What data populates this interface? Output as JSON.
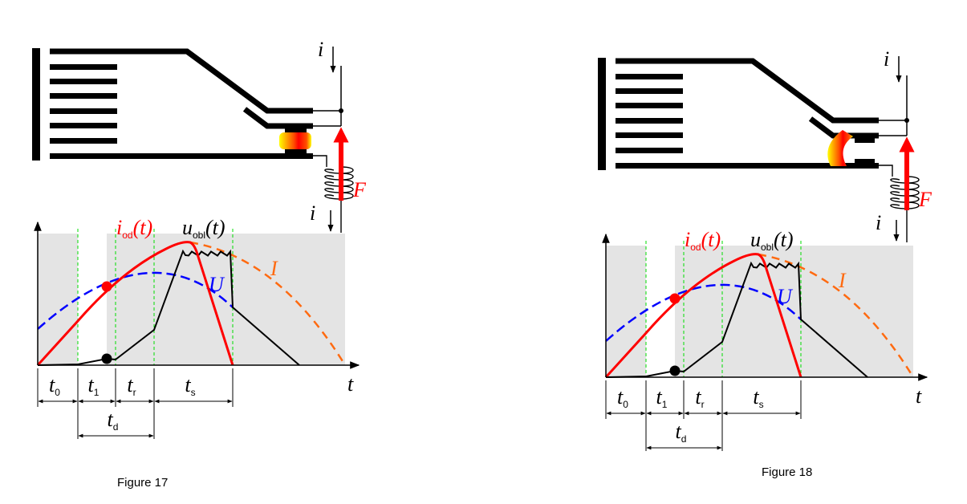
{
  "colors": {
    "current_red": "#ff0000",
    "prospective_current_orange": "#ff6a10",
    "voltage_blue": "#0000ff",
    "arc_voltage_black": "#000000",
    "interval_guides_green": "#00dd00",
    "plot_background_gray": "#e4e4e4"
  },
  "figures": [
    {
      "caption": "Figure 17",
      "contact_state": "arc between closed contacts",
      "labels": {
        "current_in": "i",
        "current_out": "i",
        "force": "F",
        "iod_main": "i",
        "iod_sub": "od",
        "iod_tail": "(t)",
        "uobl_main": "u",
        "uobl_sub": "obl",
        "uobl_tail": "(t)",
        "voltage": "U",
        "prospective_current": "I",
        "time_axis": "t",
        "t0": "t",
        "t0_sub": "0",
        "t1": "t",
        "t1_sub": "1",
        "tr": "t",
        "tr_sub": "r",
        "ts": "t",
        "ts_sub": "s",
        "td": "t",
        "td_sub": "d"
      }
    },
    {
      "caption": "Figure 18",
      "contact_state": "arc moved toward arc chute",
      "labels": {
        "current_in": "i",
        "current_out": "i",
        "force": "F",
        "iod_main": "i",
        "iod_sub": "od",
        "iod_tail": "(t)",
        "uobl_main": "u",
        "uobl_sub": "obl",
        "uobl_tail": "(t)",
        "voltage": "U",
        "prospective_current": "I",
        "time_axis": "t",
        "t0": "t",
        "t0_sub": "0",
        "t1": "t",
        "t1_sub": "1",
        "tr": "t",
        "tr_sub": "r",
        "ts": "t",
        "ts_sub": "s",
        "td": "t",
        "td_sub": "d"
      }
    }
  ]
}
